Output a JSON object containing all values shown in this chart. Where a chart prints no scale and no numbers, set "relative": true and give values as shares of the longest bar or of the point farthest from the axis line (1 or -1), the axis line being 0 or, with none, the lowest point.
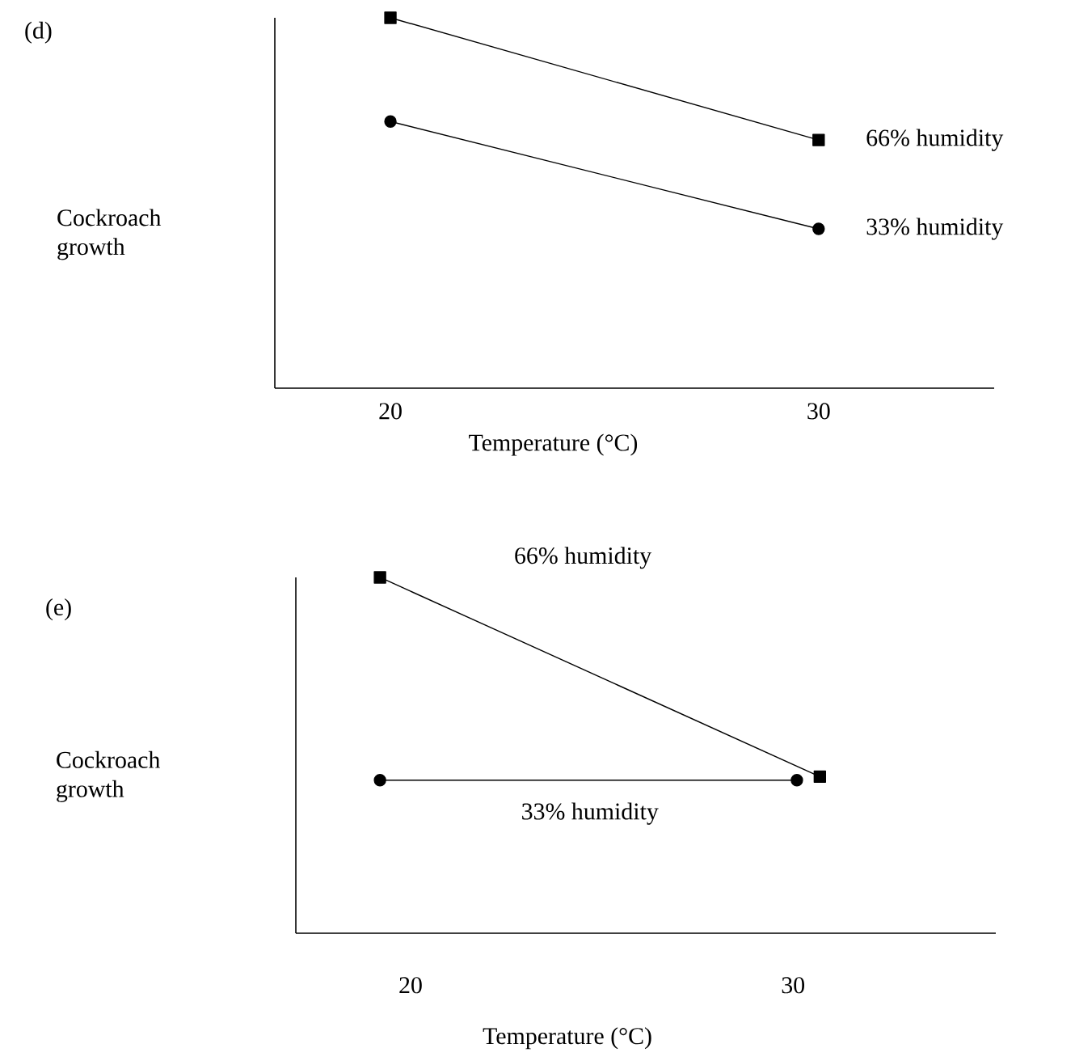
{
  "chart_data": [
    {
      "type": "line",
      "annotations": [
        "(d)"
      ],
      "xlabel": "Temperature (°C)",
      "ylabel": "Cockroach growth",
      "relative": true,
      "xlim": [
        17.3,
        34.1
      ],
      "xticks": [
        20,
        30
      ],
      "series": [
        {
          "name": "66% humidity",
          "color": "#000000",
          "marker": "square",
          "x": [
            20,
            30
          ],
          "values": [
            1,
            0.67
          ]
        },
        {
          "name": "33% humidity",
          "color": "#000000",
          "marker": "circle",
          "x": [
            20,
            30
          ],
          "values": [
            0.72,
            0.43
          ]
        }
      ]
    },
    {
      "type": "line",
      "annotations": [
        "(e)"
      ],
      "xlabel": "Temperature (°C)",
      "ylabel": "Cockroach growth",
      "relative": true,
      "xlim": [
        17.0,
        35.3
      ],
      "xticks": [
        20,
        30
      ],
      "series": [
        {
          "name": "66% humidity",
          "color": "#000000",
          "marker": "square",
          "x": [
            19.2,
            30.7
          ],
          "values": [
            1,
            0.44
          ]
        },
        {
          "name": "33% humidity",
          "color": "#000000",
          "marker": "circle",
          "x": [
            19.2,
            30.1
          ],
          "values": [
            0.43,
            0.43
          ]
        }
      ]
    }
  ]
}
